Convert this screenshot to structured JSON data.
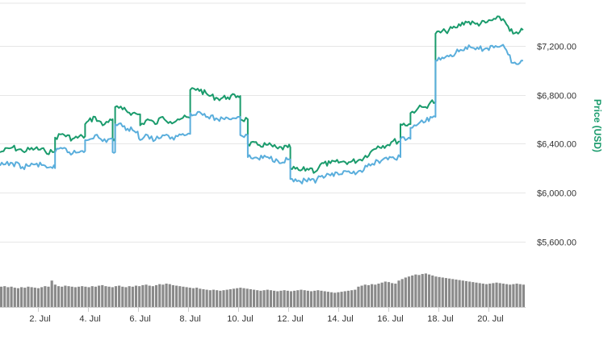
{
  "chart_data": {
    "type": "line",
    "title": "",
    "xlabel": "",
    "ylabel": "Price (USD)",
    "ylabel_color": "#1a9b6c",
    "ylim": [
      5400,
      7600
    ],
    "xlim": [
      0.5,
      21.5
    ],
    "y_ticks": [
      {
        "value": 5600,
        "label": "$5,600.00"
      },
      {
        "value": 6000,
        "label": "$6,000.00"
      },
      {
        "value": 6400,
        "label": "$6,400.00"
      },
      {
        "value": 6800,
        "label": "$6,800.00"
      },
      {
        "value": 7200,
        "label": "$7,200.00"
      }
    ],
    "x_ticks": [
      {
        "value": 2,
        "label": "2. Jul"
      },
      {
        "value": 4,
        "label": "4. Jul"
      },
      {
        "value": 6,
        "label": "6. Jul"
      },
      {
        "value": 8,
        "label": "8. Jul"
      },
      {
        "value": 10,
        "label": "10. Jul"
      },
      {
        "value": 12,
        "label": "12. Jul"
      },
      {
        "value": 14,
        "label": "14. Jul"
      },
      {
        "value": 16,
        "label": "16. Jul"
      },
      {
        "value": 18,
        "label": "18. Jul"
      },
      {
        "value": 20,
        "label": "20. Jul"
      }
    ],
    "grid": true,
    "series": [
      {
        "color": "#1a9b6c",
        "points": [
          [
            0.5,
            6330
          ],
          [
            1.0,
            6370
          ],
          [
            1.4,
            6340
          ],
          [
            1.9,
            6360
          ],
          [
            2.3,
            6340
          ],
          [
            2.6,
            6330
          ],
          [
            2.7,
            6450
          ],
          [
            3.0,
            6480
          ],
          [
            3.4,
            6440
          ],
          [
            3.8,
            6460
          ],
          [
            3.9,
            6560
          ],
          [
            4.3,
            6620
          ],
          [
            4.6,
            6550
          ],
          [
            4.9,
            6600
          ],
          [
            5.0,
            6420
          ],
          [
            5.1,
            6700
          ],
          [
            5.4,
            6680
          ],
          [
            5.8,
            6650
          ],
          [
            6.0,
            6640
          ],
          [
            6.1,
            6550
          ],
          [
            6.4,
            6600
          ],
          [
            6.7,
            6560
          ],
          [
            7.0,
            6620
          ],
          [
            7.3,
            6580
          ],
          [
            7.6,
            6600
          ],
          [
            7.8,
            6610
          ],
          [
            8.1,
            6840
          ],
          [
            8.4,
            6850
          ],
          [
            8.8,
            6800
          ],
          [
            9.2,
            6770
          ],
          [
            9.6,
            6780
          ],
          [
            10.0,
            6790
          ],
          [
            10.1,
            6600
          ],
          [
            10.4,
            6400
          ],
          [
            10.8,
            6390
          ],
          [
            11.2,
            6390
          ],
          [
            11.6,
            6360
          ],
          [
            12.0,
            6370
          ],
          [
            12.1,
            6200
          ],
          [
            12.5,
            6180
          ],
          [
            12.9,
            6200
          ],
          [
            13.1,
            6170
          ],
          [
            13.3,
            6230
          ],
          [
            13.7,
            6240
          ],
          [
            14.1,
            6250
          ],
          [
            14.5,
            6250
          ],
          [
            14.9,
            6270
          ],
          [
            15.3,
            6330
          ],
          [
            15.6,
            6380
          ],
          [
            16.0,
            6390
          ],
          [
            16.2,
            6420
          ],
          [
            16.5,
            6560
          ],
          [
            16.9,
            6650
          ],
          [
            17.2,
            6690
          ],
          [
            17.5,
            6700
          ],
          [
            17.7,
            6740
          ],
          [
            17.9,
            7300
          ],
          [
            18.3,
            7320
          ],
          [
            18.7,
            7350
          ],
          [
            19.1,
            7400
          ],
          [
            19.5,
            7380
          ],
          [
            19.9,
            7390
          ],
          [
            20.3,
            7420
          ],
          [
            20.6,
            7420
          ],
          [
            20.8,
            7360
          ],
          [
            21.0,
            7300
          ],
          [
            21.2,
            7300
          ],
          [
            21.4,
            7330
          ]
        ]
      },
      {
        "color": "#5aaedc",
        "points": [
          [
            0.5,
            6220
          ],
          [
            1.0,
            6240
          ],
          [
            1.4,
            6210
          ],
          [
            1.9,
            6230
          ],
          [
            2.3,
            6220
          ],
          [
            2.6,
            6200
          ],
          [
            2.7,
            6330
          ],
          [
            3.0,
            6360
          ],
          [
            3.4,
            6320
          ],
          [
            3.8,
            6340
          ],
          [
            3.9,
            6430
          ],
          [
            4.3,
            6470
          ],
          [
            4.6,
            6420
          ],
          [
            4.9,
            6440
          ],
          [
            5.0,
            6330
          ],
          [
            5.1,
            6560
          ],
          [
            5.4,
            6540
          ],
          [
            5.8,
            6510
          ],
          [
            6.0,
            6500
          ],
          [
            6.1,
            6430
          ],
          [
            6.4,
            6470
          ],
          [
            6.7,
            6430
          ],
          [
            7.0,
            6470
          ],
          [
            7.3,
            6440
          ],
          [
            7.6,
            6460
          ],
          [
            7.8,
            6480
          ],
          [
            8.1,
            6650
          ],
          [
            8.4,
            6660
          ],
          [
            8.8,
            6620
          ],
          [
            9.2,
            6600
          ],
          [
            9.6,
            6610
          ],
          [
            10.0,
            6620
          ],
          [
            10.1,
            6470
          ],
          [
            10.4,
            6290
          ],
          [
            10.8,
            6280
          ],
          [
            11.2,
            6290
          ],
          [
            11.6,
            6260
          ],
          [
            12.0,
            6270
          ],
          [
            12.1,
            6110
          ],
          [
            12.5,
            6090
          ],
          [
            12.9,
            6100
          ],
          [
            13.1,
            6080
          ],
          [
            13.3,
            6130
          ],
          [
            13.7,
            6140
          ],
          [
            14.1,
            6150
          ],
          [
            14.5,
            6160
          ],
          [
            14.9,
            6180
          ],
          [
            15.3,
            6220
          ],
          [
            15.6,
            6260
          ],
          [
            16.0,
            6270
          ],
          [
            16.2,
            6290
          ],
          [
            16.5,
            6440
          ],
          [
            16.9,
            6530
          ],
          [
            17.2,
            6560
          ],
          [
            17.5,
            6580
          ],
          [
            17.7,
            6620
          ],
          [
            17.9,
            7080
          ],
          [
            18.3,
            7110
          ],
          [
            18.7,
            7140
          ],
          [
            19.1,
            7190
          ],
          [
            19.5,
            7170
          ],
          [
            19.9,
            7180
          ],
          [
            20.3,
            7200
          ],
          [
            20.6,
            7210
          ],
          [
            20.8,
            7130
          ],
          [
            21.0,
            7060
          ],
          [
            21.2,
            7050
          ],
          [
            21.4,
            7080
          ]
        ]
      }
    ],
    "volume": {
      "color": "#8a8a8a",
      "max": 100,
      "values": [
        40,
        41,
        39,
        40,
        38,
        37,
        39,
        38,
        40,
        39,
        38,
        37,
        39,
        41,
        40,
        52,
        44,
        41,
        40,
        42,
        41,
        40,
        39,
        40,
        41,
        40,
        39,
        41,
        40,
        42,
        43,
        41,
        40,
        39,
        41,
        42,
        40,
        39,
        41,
        40,
        42,
        41,
        43,
        44,
        42,
        41,
        43,
        45,
        44,
        46,
        45,
        43,
        42,
        41,
        40,
        39,
        38,
        37,
        38,
        36,
        35,
        34,
        33,
        34,
        33,
        32,
        33,
        34,
        35,
        36,
        37,
        38,
        37,
        36,
        35,
        34,
        33,
        32,
        33,
        34,
        33,
        32,
        31,
        32,
        33,
        32,
        31,
        32,
        33,
        34,
        33,
        32,
        31,
        32,
        33,
        32,
        31,
        30,
        29,
        28,
        29,
        30,
        31,
        32,
        33,
        34,
        40,
        42,
        44,
        43,
        45,
        44,
        46,
        48,
        50,
        49,
        47,
        46,
        52,
        55,
        58,
        60,
        62,
        64,
        63,
        65,
        66,
        64,
        62,
        60,
        59,
        58,
        57,
        56,
        55,
        54,
        53,
        52,
        51,
        50,
        49,
        48,
        47,
        46,
        45,
        46,
        47,
        48,
        47,
        46,
        45,
        44,
        45,
        46,
        45,
        44
      ]
    }
  }
}
